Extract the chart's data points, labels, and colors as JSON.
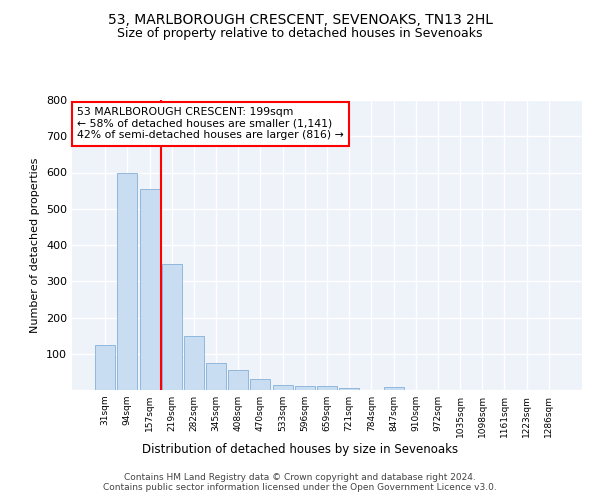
{
  "title1": "53, MARLBOROUGH CRESCENT, SEVENOAKS, TN13 2HL",
  "title2": "Size of property relative to detached houses in Sevenoaks",
  "xlabel": "Distribution of detached houses by size in Sevenoaks",
  "ylabel": "Number of detached properties",
  "categories": [
    "31sqm",
    "94sqm",
    "157sqm",
    "219sqm",
    "282sqm",
    "345sqm",
    "408sqm",
    "470sqm",
    "533sqm",
    "596sqm",
    "659sqm",
    "721sqm",
    "784sqm",
    "847sqm",
    "910sqm",
    "972sqm",
    "1035sqm",
    "1098sqm",
    "1161sqm",
    "1223sqm",
    "1286sqm"
  ],
  "values": [
    125,
    600,
    555,
    348,
    148,
    75,
    55,
    30,
    15,
    12,
    12,
    6,
    0,
    8,
    0,
    0,
    0,
    0,
    0,
    0,
    0
  ],
  "bar_color": "#c9ddf2",
  "bar_edge_color": "#85b0d8",
  "red_line_x": 2.5,
  "annotation_text": "53 MARLBOROUGH CRESCENT: 199sqm\n← 58% of detached houses are smaller (1,141)\n42% of semi-detached houses are larger (816) →",
  "annotation_box_color": "white",
  "annotation_box_edge": "red",
  "vline_color": "red",
  "ylim": [
    0,
    800
  ],
  "yticks": [
    0,
    100,
    200,
    300,
    400,
    500,
    600,
    700,
    800
  ],
  "footer1": "Contains HM Land Registry data © Crown copyright and database right 2024.",
  "footer2": "Contains public sector information licensed under the Open Government Licence v3.0.",
  "bg_color": "#eef2f9",
  "grid_color": "white",
  "title1_fontsize": 10,
  "title2_fontsize": 9
}
